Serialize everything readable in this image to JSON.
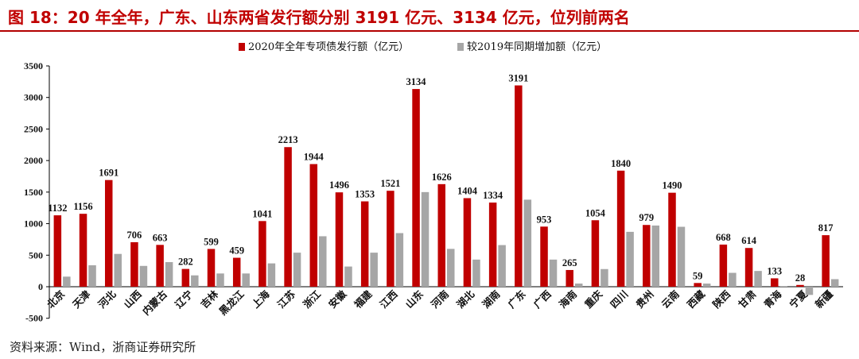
{
  "title": "图 18：20 年全年，广东、山东两省发行额分别 3191 亿元、3134 亿元，位列前两名",
  "source": "资料来源：Wind，浙商证券研究所",
  "colors": {
    "series1": "#c00000",
    "series2": "#a6a6a6",
    "title": "#c00000"
  },
  "chart_data": {
    "type": "bar",
    "title": "",
    "xlabel": "",
    "ylabel": "",
    "ylim": [
      -500,
      3500
    ],
    "yticks": [
      -500,
      0,
      500,
      1000,
      1500,
      2000,
      2500,
      3000,
      3500
    ],
    "grid": false,
    "legend": "top",
    "categories": [
      "北京",
      "天津",
      "河北",
      "山西",
      "内蒙古",
      "辽宁",
      "吉林",
      "黑龙江",
      "上海",
      "江苏",
      "浙江",
      "安徽",
      "福建",
      "江西",
      "山东",
      "河南",
      "湖北",
      "湖南",
      "广东",
      "广西",
      "海南",
      "重庆",
      "四川",
      "贵州",
      "云南",
      "西藏",
      "陕西",
      "甘肃",
      "青海",
      "宁夏",
      "新疆"
    ],
    "series": [
      {
        "name": "2020年全年专项债发行额（亿元）",
        "values": [
          1132,
          1156,
          1691,
          706,
          663,
          282,
          599,
          459,
          1041,
          2213,
          1944,
          1496,
          1353,
          1521,
          3134,
          1626,
          1404,
          1334,
          3191,
          953,
          265,
          1054,
          1840,
          979,
          1490,
          59,
          668,
          614,
          133,
          28,
          817
        ],
        "labels": [
          "1132",
          "1156",
          "1691",
          "706",
          "663",
          "282",
          "599",
          "459",
          "1041",
          "2213",
          "1944",
          "1496",
          "1353",
          "1521",
          "3134",
          "1626",
          "1404",
          "1334",
          "3191",
          "953",
          "265",
          "1054",
          "1840",
          "979",
          "1490",
          "59",
          "668",
          "614",
          "133",
          "28",
          "817"
        ]
      },
      {
        "name": "较2019年同期增加额（亿元）",
        "values": [
          160,
          340,
          520,
          330,
          390,
          180,
          210,
          210,
          370,
          540,
          800,
          320,
          540,
          850,
          1500,
          600,
          430,
          660,
          1380,
          430,
          50,
          280,
          870,
          970,
          950,
          50,
          220,
          250,
          10,
          -130,
          120
        ]
      }
    ]
  }
}
